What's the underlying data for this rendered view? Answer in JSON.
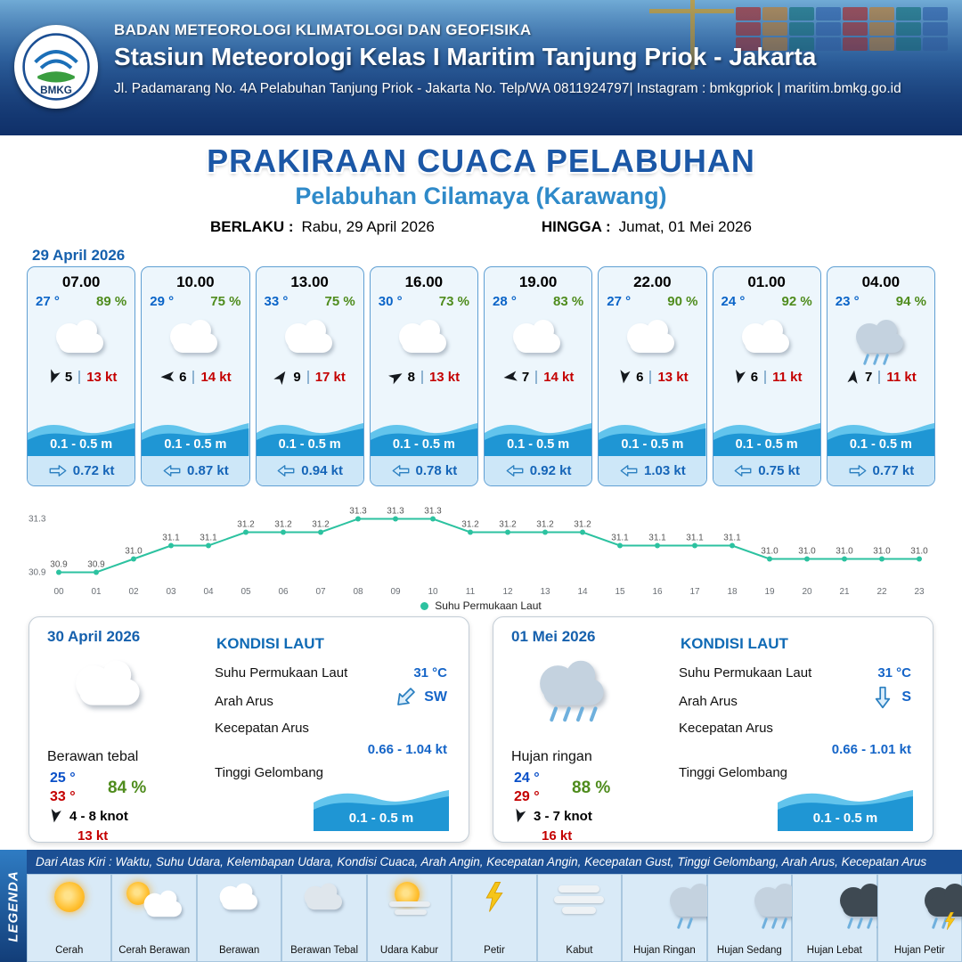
{
  "header": {
    "logo_text": "BMKG",
    "org": "BADAN METEOROLOGI KLIMATOLOGI DAN GEOFISIKA",
    "station": "Stasiun Meteorologi Kelas I Maritim Tanjung Priok - Jakarta",
    "address": "Jl. Padamarang No. 4A Pelabuhan Tanjung Priok - Jakarta No. Telp/WA 0811924797| Instagram : bmkgpriok | maritim.bmkg.go.id"
  },
  "title": {
    "main": "PRAKIRAAN CUACA PELABUHAN",
    "sub": "Pelabuhan Cilamaya (Karawang)",
    "valid_from_label": "BERLAKU :",
    "valid_from": "Rabu, 29 April 2026",
    "valid_to_label": "HINGGA :",
    "valid_to": "Jumat, 01 Mei 2026"
  },
  "hourly": {
    "date": "29 April 2026",
    "cards": [
      {
        "time": "07.00",
        "temp": "27 °",
        "rh": "89 %",
        "icon": "cloud",
        "wind_deg": 200,
        "wind": "5",
        "gust": "13 kt",
        "wave": "0.1 - 0.5 m",
        "current_deg": 180,
        "current": "0.72 kt"
      },
      {
        "time": "10.00",
        "temp": "29 °",
        "rh": "75 %",
        "icon": "cloud",
        "wind_deg": 268,
        "wind": "6",
        "gust": "14 kt",
        "wave": "0.1 - 0.5 m",
        "current_deg": 0,
        "current": "0.87 kt"
      },
      {
        "time": "13.00",
        "temp": "33 °",
        "rh": "75 %",
        "icon": "cloud",
        "wind_deg": 35,
        "wind": "9",
        "gust": "17 kt",
        "wave": "0.1 - 0.5 m",
        "current_deg": 0,
        "current": "0.94 kt"
      },
      {
        "time": "16.00",
        "temp": "30 °",
        "rh": "73 %",
        "icon": "cloud",
        "wind_deg": 60,
        "wind": "8",
        "gust": "13 kt",
        "wave": "0.1 - 0.5 m",
        "current_deg": 0,
        "current": "0.78 kt"
      },
      {
        "time": "19.00",
        "temp": "28 °",
        "rh": "83 %",
        "icon": "cloud",
        "wind_deg": 262,
        "wind": "7",
        "gust": "14 kt",
        "wave": "0.1 - 0.5 m",
        "current_deg": 0,
        "current": "0.92 kt"
      },
      {
        "time": "22.00",
        "temp": "27 °",
        "rh": "90 %",
        "icon": "cloud",
        "wind_deg": 188,
        "wind": "6",
        "gust": "13 kt",
        "wave": "0.1 - 0.5 m",
        "current_deg": 0,
        "current": "1.03 kt"
      },
      {
        "time": "01.00",
        "temp": "24 °",
        "rh": "92 %",
        "icon": "cloud",
        "wind_deg": 192,
        "wind": "6",
        "gust": "11 kt",
        "wave": "0.1 - 0.5 m",
        "current_deg": 0,
        "current": "0.75 kt"
      },
      {
        "time": "04.00",
        "temp": "23 °",
        "rh": "94 %",
        "icon": "light-rain",
        "wind_deg": 8,
        "wind": "7",
        "gust": "11 kt",
        "wave": "0.1 - 0.5 m",
        "current_deg": 180,
        "current": "0.77 kt"
      }
    ]
  },
  "chart_data": {
    "type": "line",
    "legend": "Suhu Permukaan Laut",
    "legend_position": "bottom",
    "line_color": "#2cc2a0",
    "x": [
      "00",
      "01",
      "02",
      "03",
      "04",
      "05",
      "06",
      "07",
      "08",
      "09",
      "10",
      "11",
      "12",
      "13",
      "14",
      "15",
      "16",
      "17",
      "18",
      "19",
      "20",
      "21",
      "22",
      "23"
    ],
    "values": [
      30.9,
      30.9,
      31.0,
      31.1,
      31.1,
      31.2,
      31.2,
      31.2,
      31.3,
      31.3,
      31.3,
      31.2,
      31.2,
      31.2,
      31.2,
      31.1,
      31.1,
      31.1,
      31.1,
      31.0,
      31.0,
      31.0,
      31.0,
      31.0
    ],
    "ylim": [
      30.9,
      31.3
    ],
    "ylabel": "",
    "xlabel": ""
  },
  "daily": [
    {
      "date": "30 April 2026",
      "icon": "thick-cloud",
      "desc": "Berawan tebal",
      "temp_min": "25 °",
      "temp_max": "33 °",
      "rh": "84 %",
      "wind_deg": 190,
      "wind": "4  - 8 knot",
      "gust": "13 kt",
      "sea": {
        "heading": "KONDISI LAUT",
        "sst_label": "Suhu Permukaan Laut",
        "sst": "31 °C",
        "dir_label": "Arah Arus",
        "dir": "SW",
        "dir_deg": -45,
        "speed_label": "Kecepatan Arus",
        "speed": "0.66  - 1.04 kt",
        "wave_label": "Tinggi Gelombang",
        "wave": "0.1 - 0.5 m"
      }
    },
    {
      "date": "01 Mei 2026",
      "icon": "light-rain",
      "desc": "Hujan ringan",
      "temp_min": "24 °",
      "temp_max": "29 °",
      "rh": "88 %",
      "wind_deg": 195,
      "wind": "3  - 7 knot",
      "gust": "16 kt",
      "sea": {
        "heading": "KONDISI LAUT",
        "sst_label": "Suhu Permukaan Laut",
        "sst": "31 °C",
        "dir_label": "Arah Arus",
        "dir": "S",
        "dir_deg": -90,
        "speed_label": "Kecepatan Arus",
        "speed": "0.66 - 1.01 kt",
        "wave_label": "Tinggi Gelombang",
        "wave": "0.1 - 0.5 m"
      }
    }
  ],
  "legend": {
    "label": "LEGENDA",
    "description": "Dari Atas Kiri : Waktu, Suhu Udara, Kelembapan Udara, Kondisi Cuaca, Arah Angin, Kecepatan Angin, Kecepatan Gust, Tinggi Gelombang, Arah Arus, Kecepatan Arus",
    "items": [
      {
        "label": "Cerah",
        "icon": "sun"
      },
      {
        "label": "Cerah Berawan",
        "icon": "sun-cloud"
      },
      {
        "label": "Berawan",
        "icon": "cloud"
      },
      {
        "label": "Berawan Tebal",
        "icon": "thick-cloud"
      },
      {
        "label": "Udara Kabur",
        "icon": "haze"
      },
      {
        "label": "Petir",
        "icon": "lightning"
      },
      {
        "label": "Kabut",
        "icon": "fog"
      },
      {
        "label": "Hujan Ringan",
        "icon": "light-rain"
      },
      {
        "label": "Hujan Sedang",
        "icon": "moderate-rain"
      },
      {
        "label": "Hujan Lebat",
        "icon": "heavy-rain"
      },
      {
        "label": "Hujan Petir",
        "icon": "thunderstorm"
      }
    ]
  }
}
